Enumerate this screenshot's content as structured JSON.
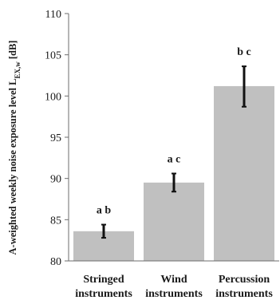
{
  "chart_data": {
    "type": "bar",
    "ylabel": {
      "prefix": "A-weighted weekly noise exposure level L",
      "subscript": "EX,w",
      "suffix": " [dB]"
    },
    "ylim": [
      80,
      110
    ],
    "yticks": [
      80,
      85,
      90,
      95,
      100,
      105,
      110
    ],
    "categories": [
      [
        "Stringed",
        "instruments"
      ],
      [
        "Wind",
        "instruments"
      ],
      [
        "Percussion",
        "instruments"
      ]
    ],
    "values": [
      83.6,
      89.5,
      101.2
    ],
    "error_low": [
      82.8,
      88.4,
      98.7
    ],
    "error_high": [
      84.4,
      90.6,
      103.6
    ],
    "annotations": [
      "a b",
      "a c",
      "b c"
    ],
    "bar_color": "#c0c0c0",
    "error_color": "#111111"
  }
}
